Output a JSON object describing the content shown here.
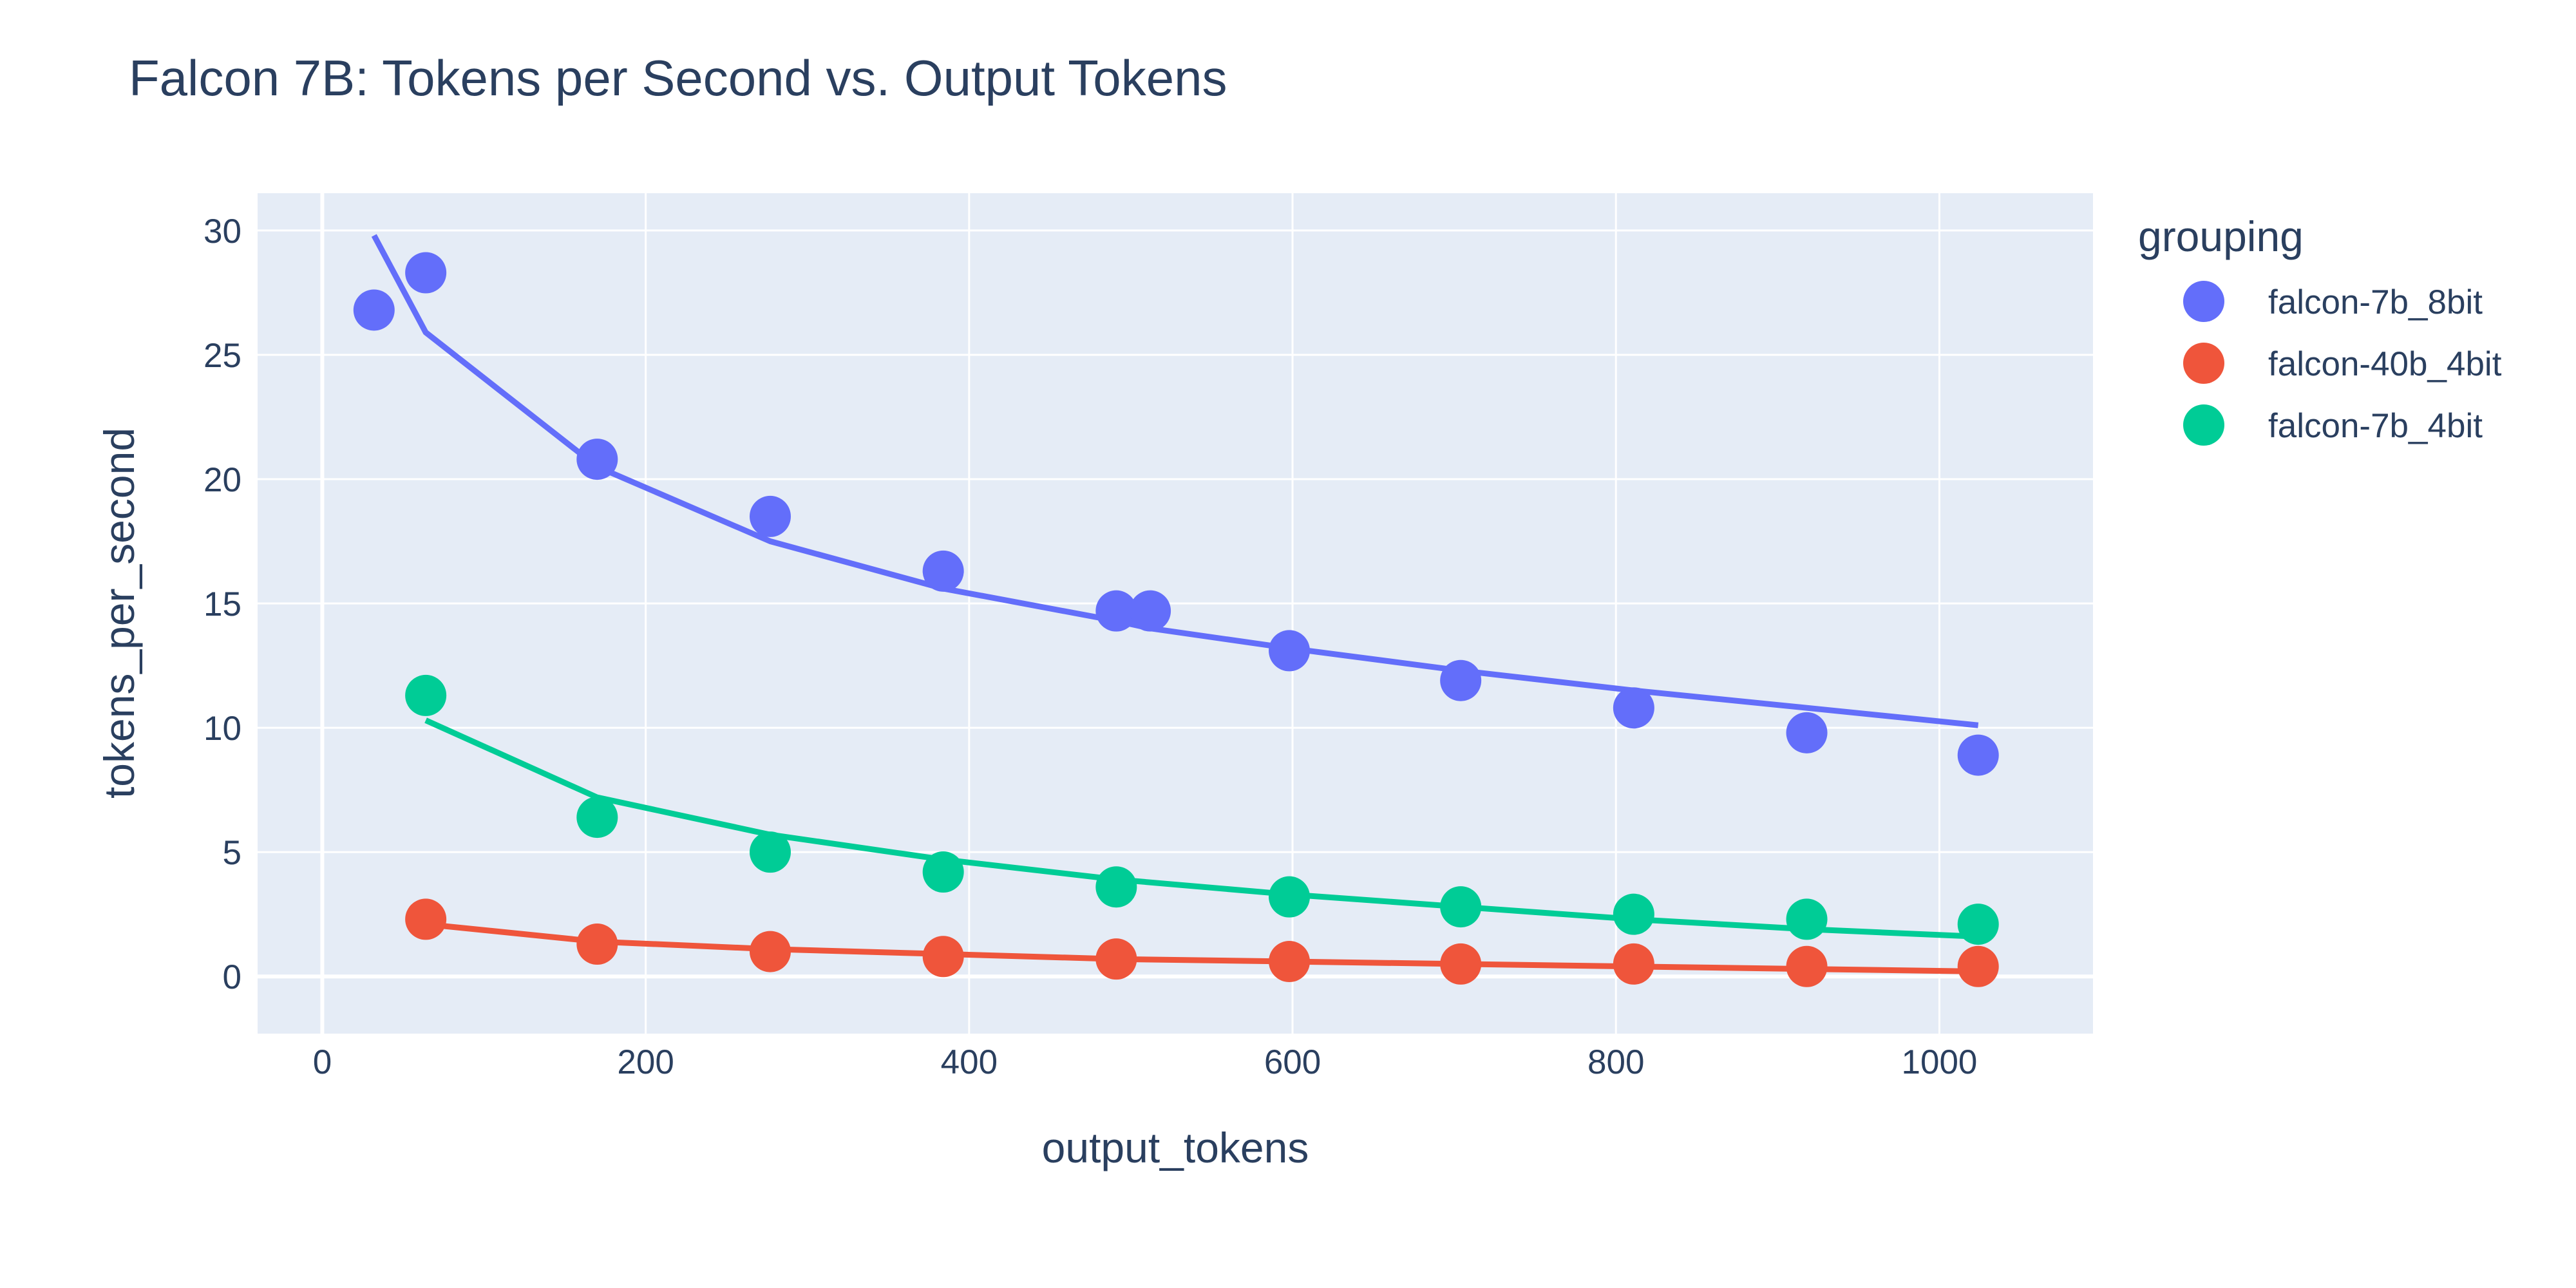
{
  "chart_data": {
    "type": "scatter",
    "title": "Falcon 7B: Tokens per Second vs. Output Tokens",
    "xlabel": "output_tokens",
    "ylabel": "tokens_per_second",
    "xlim": [
      -40,
      1095
    ],
    "ylim": [
      -2.3,
      31.5
    ],
    "x_ticks": [
      0,
      200,
      400,
      600,
      800,
      1000
    ],
    "y_ticks": [
      0,
      5,
      10,
      15,
      20,
      25,
      30
    ],
    "grid": true,
    "legend_title": "grouping",
    "legend_position": "right",
    "series": [
      {
        "name": "falcon-7b_8bit",
        "color": "#636efa",
        "points": [
          [
            32,
            26.8
          ],
          [
            64,
            28.3
          ],
          [
            170,
            20.8
          ],
          [
            277,
            18.5
          ],
          [
            384,
            16.3
          ],
          [
            491,
            14.7
          ],
          [
            512,
            14.7
          ],
          [
            598,
            13.1
          ],
          [
            704,
            11.9
          ],
          [
            811,
            10.8
          ],
          [
            918,
            9.8
          ],
          [
            1024,
            8.9
          ]
        ],
        "fit": [
          [
            32,
            29.8
          ],
          [
            64,
            25.9
          ],
          [
            170,
            20.5
          ],
          [
            277,
            17.5
          ],
          [
            384,
            15.6
          ],
          [
            491,
            14.3
          ],
          [
            512,
            14.0
          ],
          [
            598,
            13.2
          ],
          [
            704,
            12.3
          ],
          [
            811,
            11.5
          ],
          [
            918,
            10.8
          ],
          [
            1024,
            10.1
          ]
        ]
      },
      {
        "name": "falcon-40b_4bit",
        "color": "#ef553b",
        "points": [
          [
            64,
            2.3
          ],
          [
            170,
            1.3
          ],
          [
            277,
            1.0
          ],
          [
            384,
            0.8
          ],
          [
            491,
            0.7
          ],
          [
            598,
            0.6
          ],
          [
            704,
            0.5
          ],
          [
            811,
            0.5
          ],
          [
            918,
            0.4
          ],
          [
            1024,
            0.4
          ]
        ],
        "fit": [
          [
            64,
            2.1
          ],
          [
            170,
            1.4
          ],
          [
            277,
            1.1
          ],
          [
            384,
            0.9
          ],
          [
            491,
            0.7
          ],
          [
            598,
            0.6
          ],
          [
            704,
            0.5
          ],
          [
            811,
            0.4
          ],
          [
            918,
            0.3
          ],
          [
            1024,
            0.2
          ]
        ]
      },
      {
        "name": "falcon-7b_4bit",
        "color": "#00cc96",
        "points": [
          [
            64,
            11.3
          ],
          [
            170,
            6.4
          ],
          [
            277,
            5.0
          ],
          [
            384,
            4.2
          ],
          [
            491,
            3.6
          ],
          [
            598,
            3.2
          ],
          [
            704,
            2.8
          ],
          [
            811,
            2.5
          ],
          [
            918,
            2.3
          ],
          [
            1024,
            2.1
          ]
        ],
        "fit": [
          [
            64,
            10.3
          ],
          [
            170,
            7.2
          ],
          [
            277,
            5.7
          ],
          [
            384,
            4.7
          ],
          [
            491,
            3.9
          ],
          [
            598,
            3.3
          ],
          [
            704,
            2.8
          ],
          [
            811,
            2.3
          ],
          [
            918,
            1.9
          ],
          [
            1024,
            1.6
          ]
        ]
      }
    ]
  }
}
